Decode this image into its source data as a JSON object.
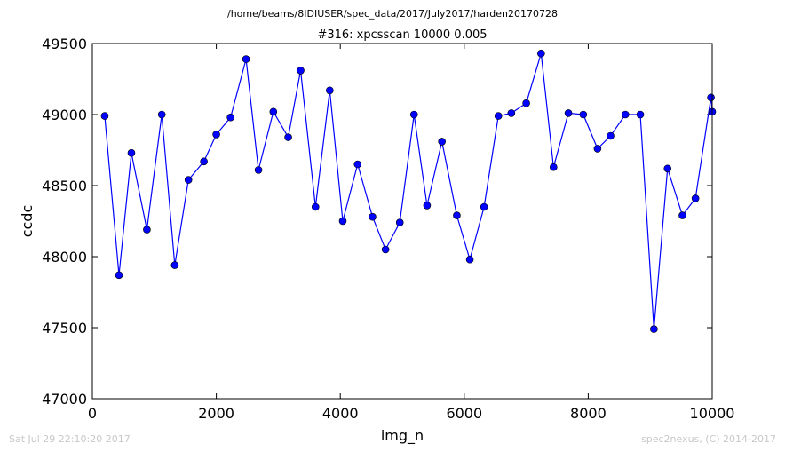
{
  "suptitle": "/home/beams/8IDIUSER/spec_data/2017/July2017/harden20170728",
  "timestamp": "Sat Jul 29 22:10:20 2017",
  "credit": "spec2nexus, (C) 2014-2017",
  "colors": {
    "line": "#0000ff",
    "marker": "#0000ff",
    "marker_edge": "#000000",
    "axes": "#000000",
    "background": "#ffffff"
  },
  "chart_data": {
    "type": "line",
    "title": "#316: xpcsscan 10000 0.005",
    "xlabel": "img_n",
    "ylabel": "ccdc",
    "xlim": [
      0,
      10000
    ],
    "ylim": [
      47000,
      49500
    ],
    "xticks": [
      0,
      2000,
      4000,
      6000,
      8000,
      10000
    ],
    "yticks": [
      47000,
      47500,
      48000,
      48500,
      49000,
      49500
    ],
    "grid": false,
    "series": [
      {
        "x": [
          200,
          430,
          630,
          880,
          1120,
          1330,
          1550,
          1800,
          2000,
          2230,
          2480,
          2680,
          2920,
          3160,
          3360,
          3600,
          3830,
          4040,
          4280,
          4520,
          4730,
          4960,
          5190,
          5400,
          5640,
          5880,
          6090,
          6320,
          6550,
          6760,
          7000,
          7240,
          7440,
          7680,
          7920,
          8150,
          8360,
          8600,
          8840,
          9060,
          9280,
          9520,
          9730,
          9980,
          10000
        ],
        "y": [
          48990,
          47870,
          48730,
          48190,
          49000,
          47940,
          48540,
          48670,
          48860,
          48980,
          49390,
          48610,
          49020,
          48840,
          49310,
          48350,
          49170,
          48250,
          48650,
          48280,
          48050,
          48240,
          49000,
          48360,
          48810,
          48290,
          47980,
          48350,
          48990,
          49010,
          49080,
          49430,
          48630,
          49010,
          49000,
          48760,
          48850,
          49000,
          49000,
          47490,
          48620,
          48290,
          48410,
          49120,
          49020
        ]
      }
    ]
  }
}
